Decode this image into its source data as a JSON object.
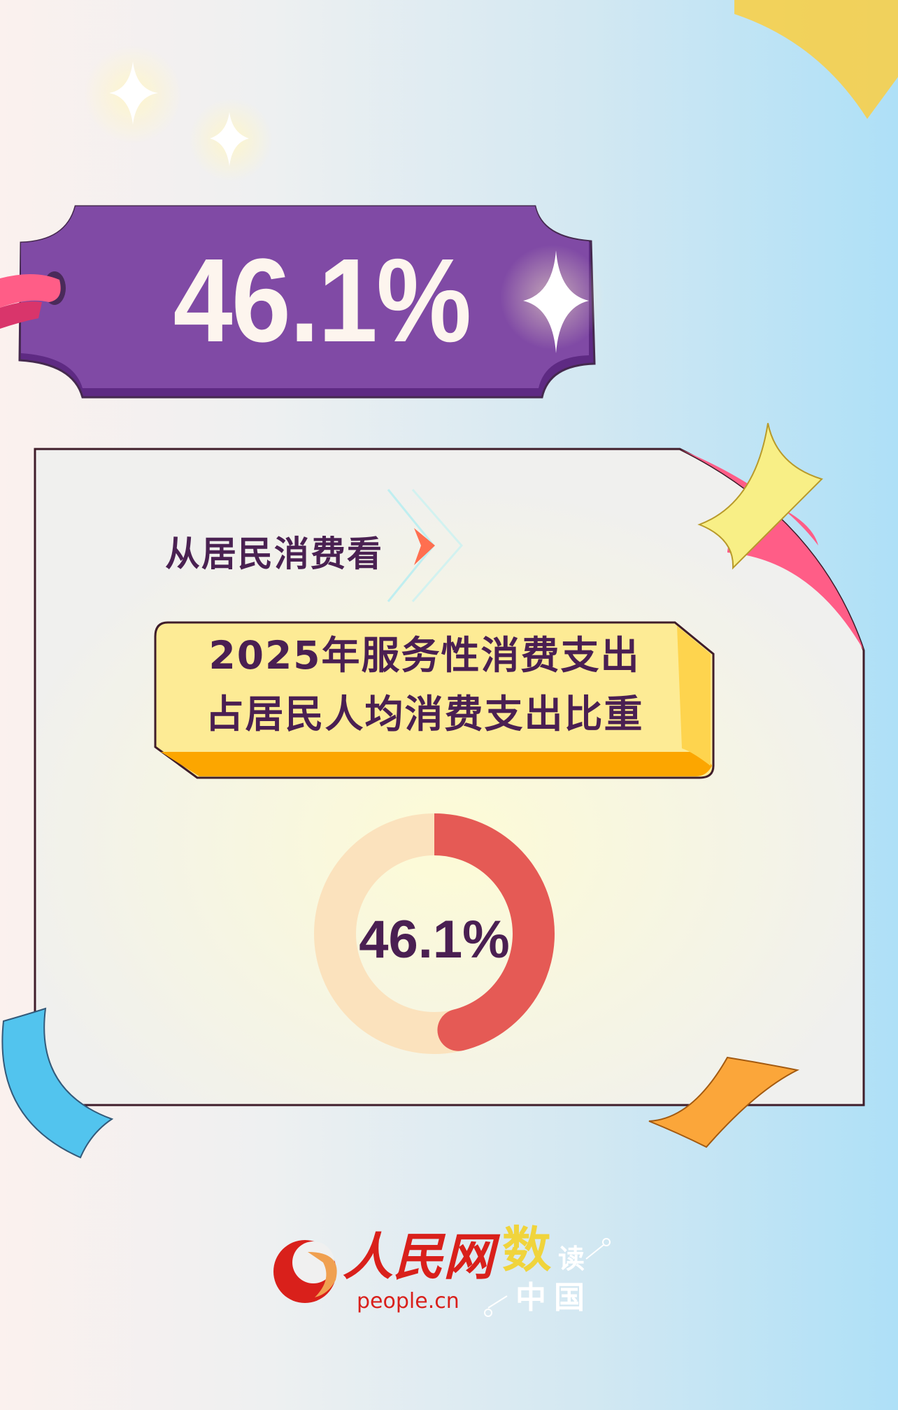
{
  "tag": {
    "value": "46.1%",
    "color": "#804aa5"
  },
  "section": {
    "title": "从居民消费看"
  },
  "headline": {
    "line1": "2025年服务性消费支出",
    "line2": "占居民人均消费支出比重"
  },
  "chart_data": {
    "type": "pie",
    "style": "donut",
    "categories": [
      "服务性消费支出"
    ],
    "values": [
      46.1
    ],
    "unit": "%",
    "center_label": "46.1%",
    "colors": {
      "value": "#e55a55",
      "remainder": "#fbe2bd"
    }
  },
  "footer": {
    "brand_cn": "人民网",
    "brand_domain": "people.cn",
    "column_name": [
      "数",
      "读",
      "中",
      "国"
    ]
  }
}
